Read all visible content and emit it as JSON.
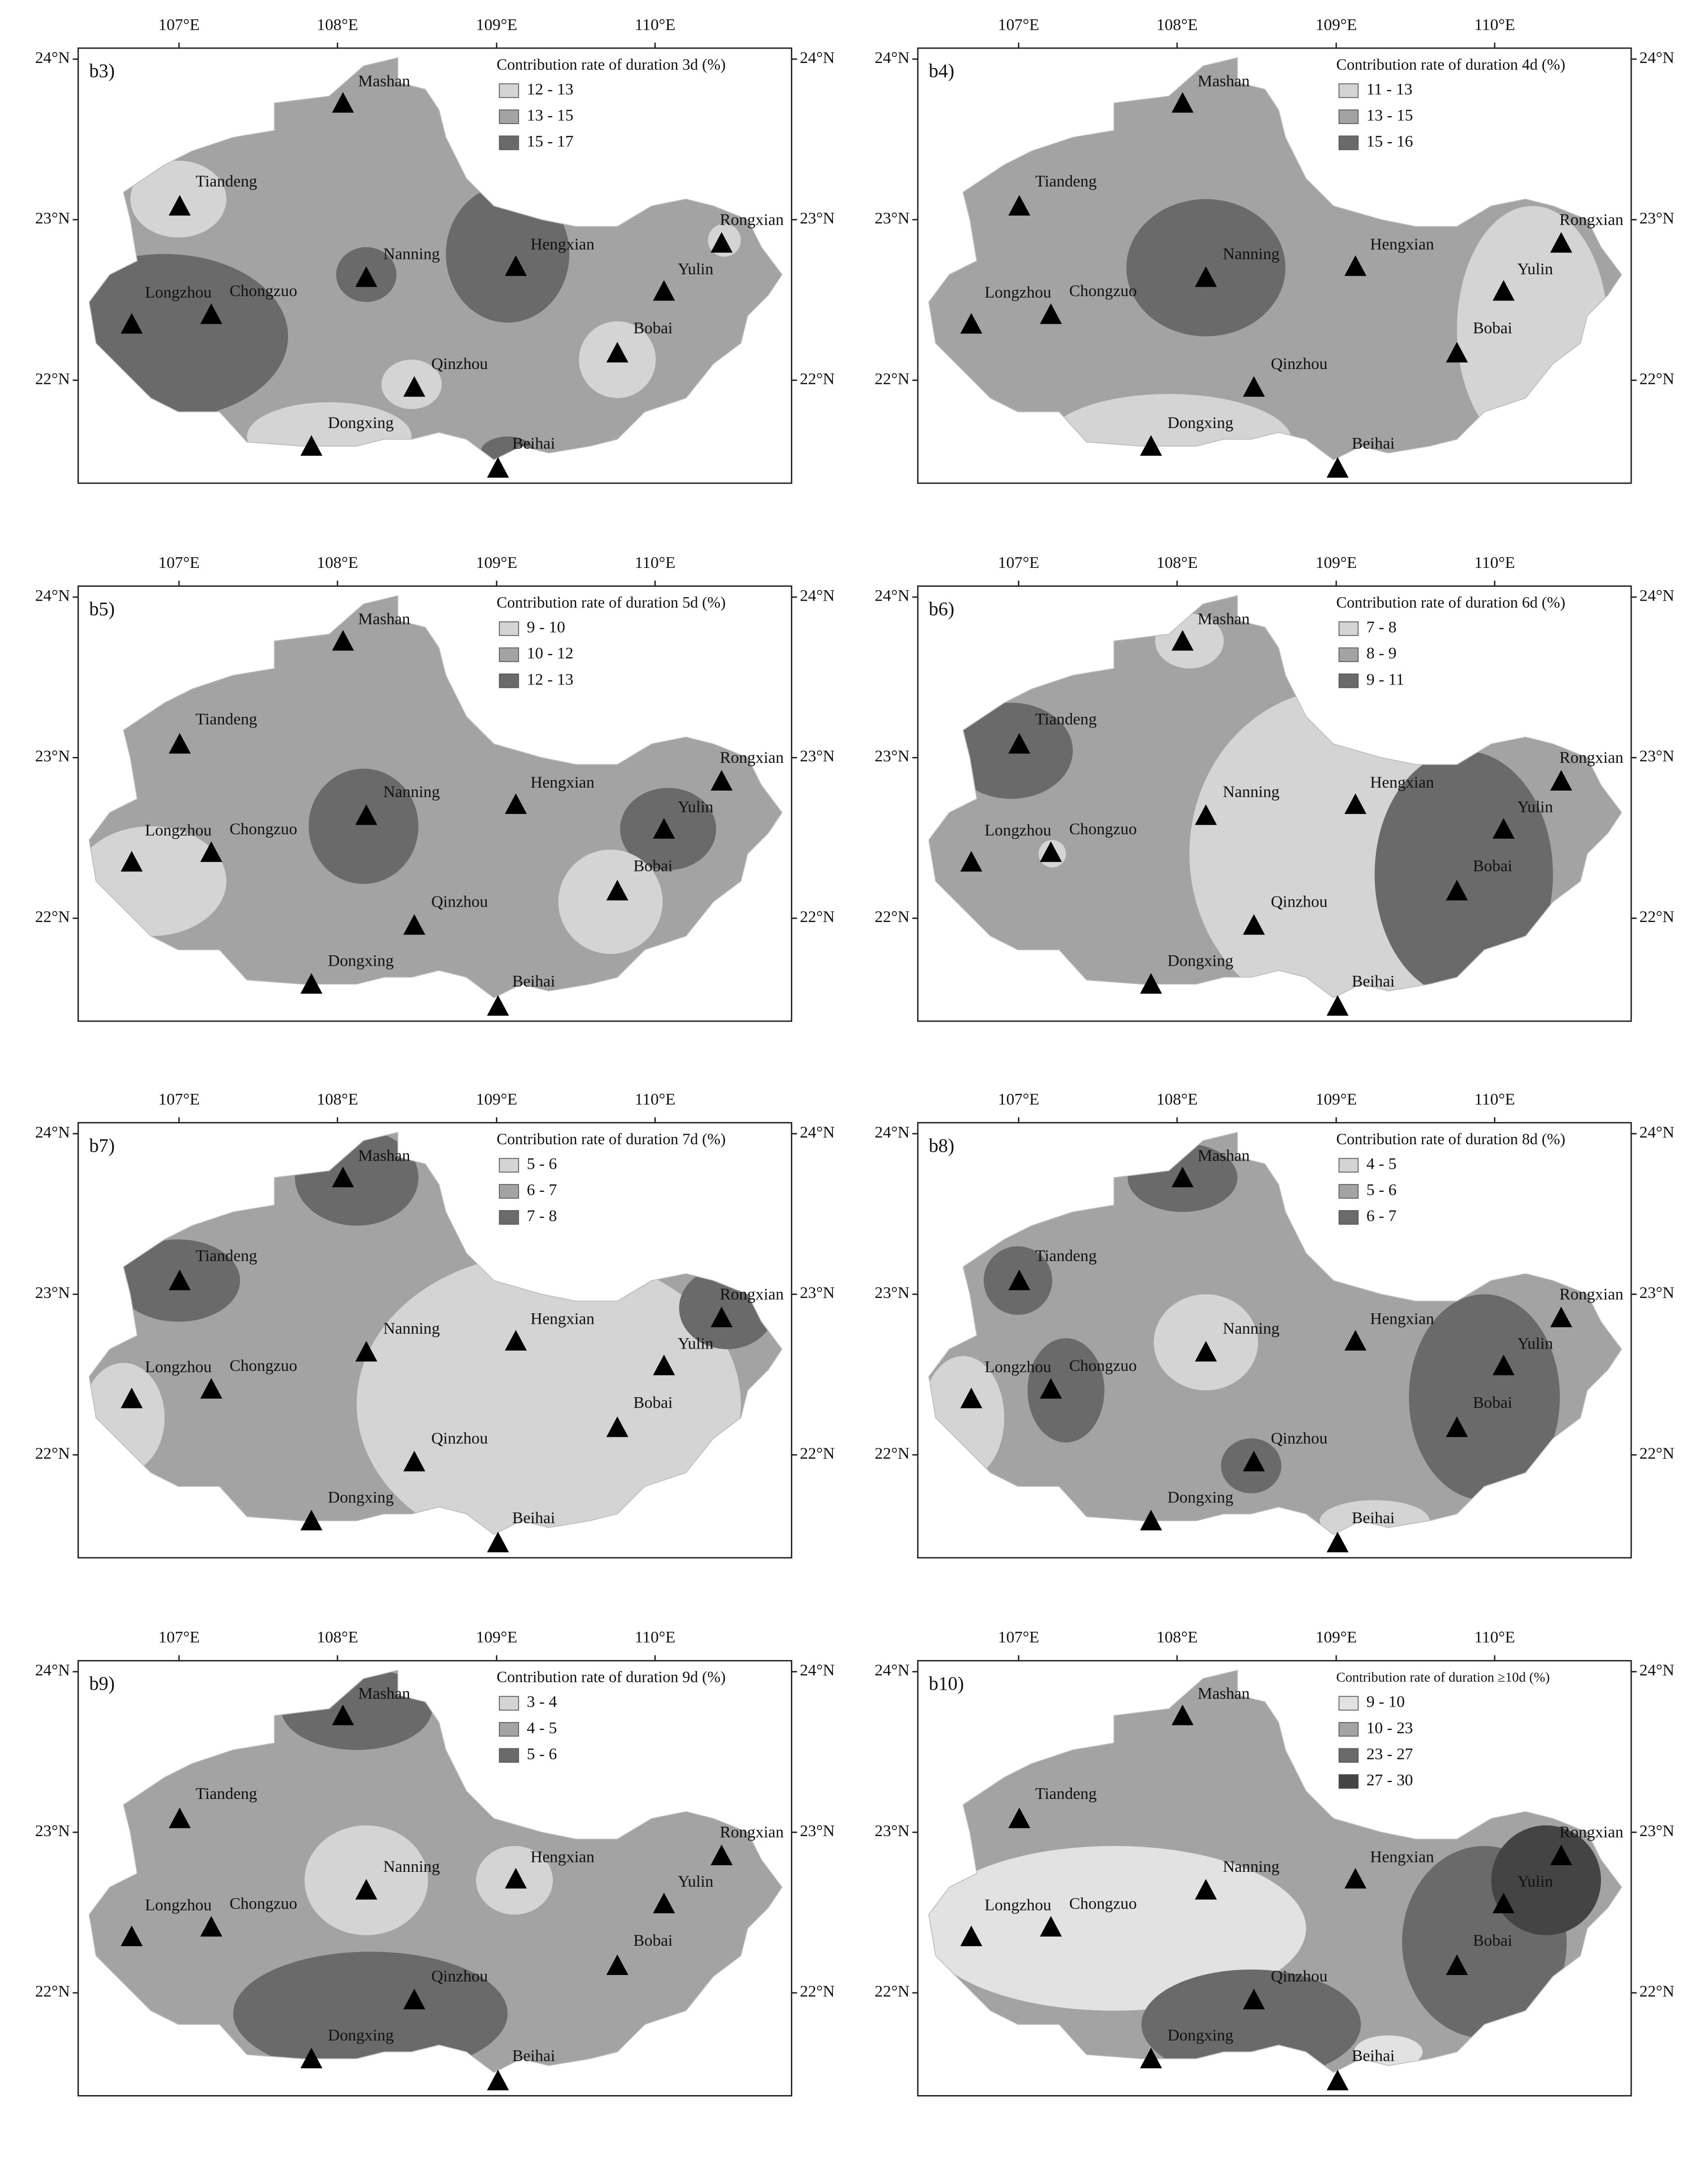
{
  "figure": {
    "panels": [
      {
        "label": "b3)",
        "legend": {
          "title": "Contribution rate of duration 3d (%)",
          "items": [
            "12 - 13",
            "13 - 15",
            "15 - 17"
          ]
        }
      },
      {
        "label": "b4)",
        "legend": {
          "title": "Contribution rate of duration 4d (%)",
          "items": [
            "11 - 13",
            "13 - 15",
            "15 - 16"
          ]
        }
      },
      {
        "label": "b5)",
        "legend": {
          "title": "Contribution rate of duration 5d (%)",
          "items": [
            "9 - 10",
            "10 - 12",
            "12 - 13"
          ]
        }
      },
      {
        "label": "b6)",
        "legend": {
          "title": "Contribution rate of duration 6d (%)",
          "items": [
            "7 - 8",
            "8 - 9",
            "9 - 11"
          ]
        }
      },
      {
        "label": "b7)",
        "legend": {
          "title": "Contribution rate of duration 7d (%)",
          "items": [
            "5 - 6",
            "6 - 7",
            "7 - 8"
          ]
        }
      },
      {
        "label": "b8)",
        "legend": {
          "title": "Contribution rate of duration 8d (%)",
          "items": [
            "4 - 5",
            "5 - 6",
            "6 - 7"
          ]
        }
      },
      {
        "label": "b9)",
        "legend": {
          "title": "Contribution rate of duration 9d (%)",
          "items": [
            "3 - 4",
            "4 - 5",
            "5 - 6"
          ]
        }
      },
      {
        "label": "b10)",
        "legend": {
          "title": "Contribution rate of duration ≥10d (%)",
          "items": [
            "9 - 10",
            "10 - 23",
            "23 - 27",
            "27 - 30"
          ]
        }
      }
    ],
    "lon_ticks": [
      "107°E",
      "108°E",
      "109°E",
      "110°E"
    ],
    "lat_ticks": [
      "24°N",
      "23°N",
      "22°N"
    ],
    "stations": [
      "Mashan",
      "Tiandeng",
      "Nanning",
      "Hengxian",
      "Rongxian",
      "Yulin",
      "Longzhou",
      "Chongzuo",
      "Bobai",
      "Qinzhou",
      "Dongxing",
      "Beihai"
    ]
  }
}
